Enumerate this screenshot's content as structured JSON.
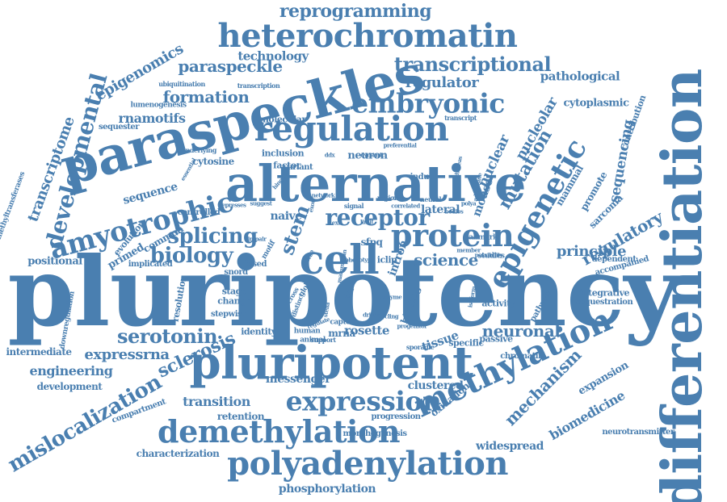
{
  "colors": {
    "word": "#4a7fb0",
    "background": "#ffffff"
  },
  "words": [
    "pluripotency",
    "differentiation",
    "paraspeckles",
    "alternative",
    "pluripotent",
    "regulation",
    "heterochromatin",
    "polyadenylation",
    "methylation",
    "demethylation",
    "expression",
    "protein",
    "cell",
    "embryonic",
    "epigenetic",
    "amyotrophic",
    "transcriptional",
    "reprogramming",
    "developmental",
    "mislocalization",
    "mutation",
    "receptor",
    "splicing",
    "biology",
    "stem",
    "serotonin",
    "science",
    "neuronal",
    "sclerosis",
    "paraspeckle",
    "mechanism",
    "regulatory",
    "transcriptome",
    "formation",
    "epigenomics",
    "regulator",
    "principle",
    "expressrna",
    "engineering",
    "transition",
    "technology",
    "nuclear",
    "nucleolar",
    "sequencing",
    "rnamotifs",
    "pathological",
    "cytoplasmic",
    "biomedicine",
    "messenger",
    "rosette",
    "tissue",
    "clustered",
    "mouse",
    "naive",
    "lateral",
    "intron",
    "positional",
    "widespread",
    "expansion",
    "oxidation",
    "sequence",
    "characterization",
    "retention",
    "phosphorylation",
    "development",
    "intermediate",
    "sarcoma",
    "promote",
    "contribution",
    "mammal",
    "identity",
    "mrna",
    "binding",
    "specific",
    "passive",
    "integrative",
    "sequestration",
    "accompanied",
    "dependent",
    "neurotransmitter",
    "cytosine",
    "factor",
    "inclusion",
    "molecular",
    "neuron",
    "sequester",
    "primed",
    "common",
    "evolution",
    "controlled",
    "implicated",
    "resolution",
    "stage",
    "change",
    "stepwise",
    "snord",
    "fused",
    "sfpq",
    "iclip",
    "activity",
    "chromatin",
    "pathway",
    "compartment",
    "progression",
    "morphogenesis",
    "downregulation",
    "methyltransferases",
    "lumenogenesis",
    "ubiquitination",
    "transcription",
    "transcript",
    "induce",
    "variant",
    "hallmark",
    "studies",
    "human",
    "capture",
    "animal",
    "support",
    "sporadic",
    "motif",
    "site",
    "global",
    "cross",
    "distinct",
    "dppa",
    "hinge",
    "underlying",
    "essential",
    "represses",
    "suggest",
    "impair",
    "bodies",
    "network",
    "signal",
    "region",
    "map",
    "neural",
    "polya",
    "correlated",
    "exon",
    "limit",
    "progenitor",
    "stella",
    "regulate",
    "cycling",
    "exit",
    "member",
    "possibility",
    "driven",
    "preferential",
    "dynamic",
    "whereas",
    "adenosine",
    "mammalian",
    "enzyme",
    "isoform",
    "phenotype",
    "ddx",
    "mass"
  ]
}
